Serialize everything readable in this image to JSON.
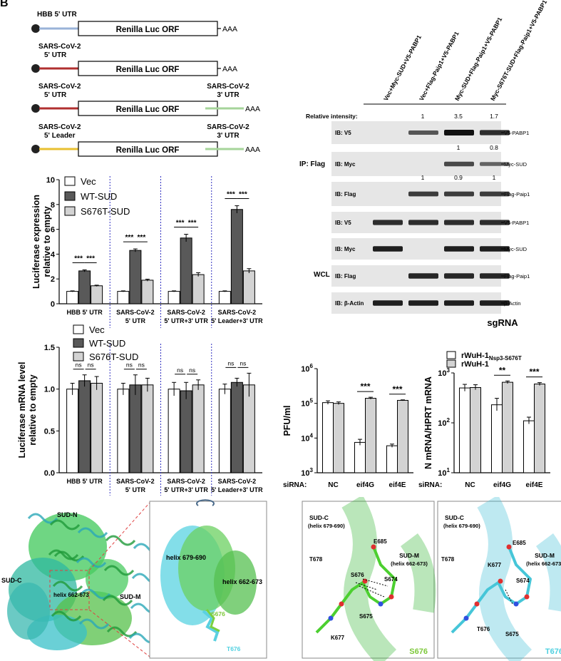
{
  "panel_label": "B",
  "constructs": {
    "orf": "Renilla Luc ORF",
    "tail": "AAA",
    "rows": [
      {
        "utr5": "HBB 5' UTR",
        "utr5_color": "#9ab3d8",
        "utr3": ""
      },
      {
        "utr5": "SARS-CoV-2 5' UTR",
        "utr5_color": "#b03030",
        "utr3": ""
      },
      {
        "utr5": "SARS-CoV-2 5' UTR",
        "utr5_color": "#b03030",
        "utr3": "SARS-CoV-2 3' UTR",
        "utr3_color": "#a6d49a"
      },
      {
        "utr5": "SARS-CoV-2 5' Leader",
        "utr5_color": "#e8c030",
        "utr3": "SARS-CoV-2 3' UTR",
        "utr3_color": "#a6d49a"
      }
    ]
  },
  "western": {
    "lanes": [
      "Vec+Myc-SUD+V5-PABP1",
      "Vec+Flag-Paip1+V5-PABP1",
      "Myc-SUD+Flag-Paip1+V5-PABP1",
      "Myc-S676T-SUD+Flag-Paip1+V5-PABP1"
    ],
    "relative_intensity_label": "Relative intensity:",
    "relative_intensity": [
      "",
      "1",
      "3.5",
      "1.7"
    ],
    "ip_label": "IP: Flag",
    "wcl_label": "WCL",
    "ip_blots": [
      {
        "ib": "IB: V5",
        "target": "V5-PABP1",
        "bands": [
          0,
          0.5,
          1,
          0.8
        ]
      },
      {
        "ib": "IB: Myc",
        "target": "Myc-SUD",
        "bands": [
          0,
          0,
          0.6,
          0.4
        ],
        "quant": [
          "",
          "",
          "1",
          "0.8"
        ]
      },
      {
        "ib": "IB: Flag",
        "target": "Flag-Paip1",
        "bands": [
          0,
          0.7,
          0.7,
          0.7
        ],
        "quant": [
          "",
          "1",
          "0.9",
          "1"
        ]
      }
    ],
    "wcl_blots": [
      {
        "ib": "IB: V5",
        "target": "V5-PABP1",
        "bands": [
          0.8,
          0.8,
          0.8,
          0.8
        ]
      },
      {
        "ib": "IB: Myc",
        "target": "Myc-SUD",
        "bands": [
          0.9,
          0,
          0.9,
          0.9
        ]
      },
      {
        "ib": "IB: Flag",
        "target": "Flag-Paip1",
        "bands": [
          0,
          0.85,
          0.85,
          0.85
        ]
      },
      {
        "ib": "IB: β-Actin",
        "target": "β-Actin",
        "bands": [
          0.9,
          0.9,
          0.9,
          0.9
        ]
      }
    ]
  },
  "chart_data": [
    {
      "type": "bar",
      "ylabel": "Luciferase expression relative to empty",
      "ylim": [
        0,
        10
      ],
      "yticks": [
        0,
        2,
        4,
        6,
        8,
        10
      ],
      "categories": [
        "HBB 5' UTR",
        "SARS-CoV-2 5' UTR",
        "SARS-CoV-2 5' UTR+3' UTR",
        "SARS-CoV-2 5' Leader+3' UTR"
      ],
      "series": [
        {
          "name": "Vec",
          "color": "#ffffff",
          "values": [
            1.0,
            1.0,
            1.0,
            1.0
          ],
          "errors": [
            0.04,
            0.04,
            0.04,
            0.04
          ]
        },
        {
          "name": "WT-SUD",
          "color": "#595959",
          "values": [
            2.65,
            4.3,
            5.3,
            7.6
          ],
          "errors": [
            0.08,
            0.12,
            0.3,
            0.3
          ]
        },
        {
          "name": "S676T-SUD",
          "color": "#d3d3d3",
          "values": [
            1.45,
            1.9,
            2.35,
            2.65
          ],
          "errors": [
            0.05,
            0.08,
            0.15,
            0.18
          ]
        }
      ],
      "significance": [
        "***",
        "***",
        "***",
        "***",
        "***",
        "***",
        "***",
        "***"
      ],
      "legend": "top-left"
    },
    {
      "type": "bar",
      "ylabel": "Luciferase mRNA level relative to empty",
      "ylim": [
        0,
        1.5
      ],
      "yticks": [
        "0.0",
        "0.5",
        "1.0",
        "1.5"
      ],
      "categories": [
        "HBB 5' UTR",
        "SARS-CoV-2 5' UTR",
        "SARS-CoV-2 5' UTR+3' UTR",
        "SARS-CoV-2 5' Leader+3' UTR"
      ],
      "series": [
        {
          "name": "Vec",
          "color": "#ffffff",
          "values": [
            1.0,
            1.0,
            1.0,
            1.0
          ],
          "errors": [
            0.07,
            0.07,
            0.08,
            0.06
          ]
        },
        {
          "name": "WT-SUD",
          "color": "#595959",
          "values": [
            1.1,
            1.05,
            0.98,
            1.08
          ],
          "errors": [
            0.07,
            0.12,
            0.1,
            0.05
          ]
        },
        {
          "name": "S676T-SUD",
          "color": "#d3d3d3",
          "values": [
            1.07,
            1.05,
            1.05,
            1.05
          ],
          "errors": [
            0.08,
            0.08,
            0.06,
            0.14
          ]
        }
      ],
      "significance": [
        "ns",
        "ns",
        "ns",
        "ns",
        "ns",
        "ns",
        "ns",
        "ns"
      ],
      "legend": "top-left"
    },
    {
      "type": "bar",
      "ylabel": "PFU/ml",
      "yscale": "log",
      "ylim": [
        1000,
        1000000
      ],
      "yticks": [
        "10^3",
        "10^4",
        "10^5",
        "10^6"
      ],
      "xaxis_prefix": "siRNA:",
      "categories": [
        "NC",
        "eif4G",
        "eif4E"
      ],
      "series": [
        {
          "name": "rWuH-1 Nsp3-S676T",
          "color": "#ffffff",
          "values": [
            105000,
            7500,
            6000
          ],
          "errors_up": [
            118000,
            9200,
            6700
          ],
          "errors_down": [
            94000,
            6200,
            5400
          ]
        },
        {
          "name": "rWuH-1",
          "color": "#d3d3d3",
          "values": [
            100000,
            140000,
            122000
          ],
          "errors_up": [
            110000,
            150000,
            126000
          ],
          "errors_down": [
            92000,
            132000,
            118000
          ]
        }
      ],
      "significance": [
        "",
        "***",
        "***"
      ]
    },
    {
      "type": "bar",
      "title": "sgRNA",
      "ylabel": "N mRNA/HPRT mRNA",
      "yscale": "log",
      "ylim": [
        10,
        1000
      ],
      "yticks": [
        "10^1",
        "10^2",
        "10^3"
      ],
      "xaxis_prefix": "siRNA:",
      "categories": [
        "NC",
        "eif4G",
        "eif4E"
      ],
      "series": [
        {
          "name": "rWuH-1",
          "subscript": "Nsp3-S676T",
          "color": "#ffffff",
          "values": [
            500,
            230,
            110
          ],
          "errors_up": [
            590,
            310,
            130
          ],
          "errors_down": [
            430,
            175,
            95
          ]
        },
        {
          "name": "rWuH-1",
          "subscript": "",
          "color": "#d3d3d3",
          "values": [
            510,
            650,
            600
          ],
          "errors_up": [
            580,
            690,
            640
          ],
          "errors_down": [
            460,
            610,
            560
          ]
        }
      ],
      "significance": [
        "",
        "**",
        "***"
      ],
      "legend": "top"
    }
  ],
  "structure": {
    "overview_labels": [
      "SUD-N",
      "SUD-C",
      "SUD-M",
      "helix 662-673"
    ],
    "zoom_labels": [
      "helix 679-690",
      "helix 662-673",
      "S676",
      "T676"
    ],
    "s676_panel": {
      "title": "SUD-C",
      "title2": "(helix 679-690)",
      "sudm": "SUD-M",
      "sudm2": "(helix 662-673)",
      "residues": [
        "E685",
        "T678",
        "S676",
        "S674",
        "S675",
        "K677"
      ],
      "tag": "S676",
      "tag_color": "#7dc83a"
    },
    "t676_panel": {
      "title": "SUD-C",
      "title2": "(helix 679-690)",
      "sudm": "SUD-M",
      "sudm2": "(helix 662-673)",
      "residues": [
        "E685",
        "K677",
        "T678",
        "S674",
        "T676",
        "S675"
      ],
      "tag": "T676",
      "tag_color": "#4fd0e0"
    }
  }
}
